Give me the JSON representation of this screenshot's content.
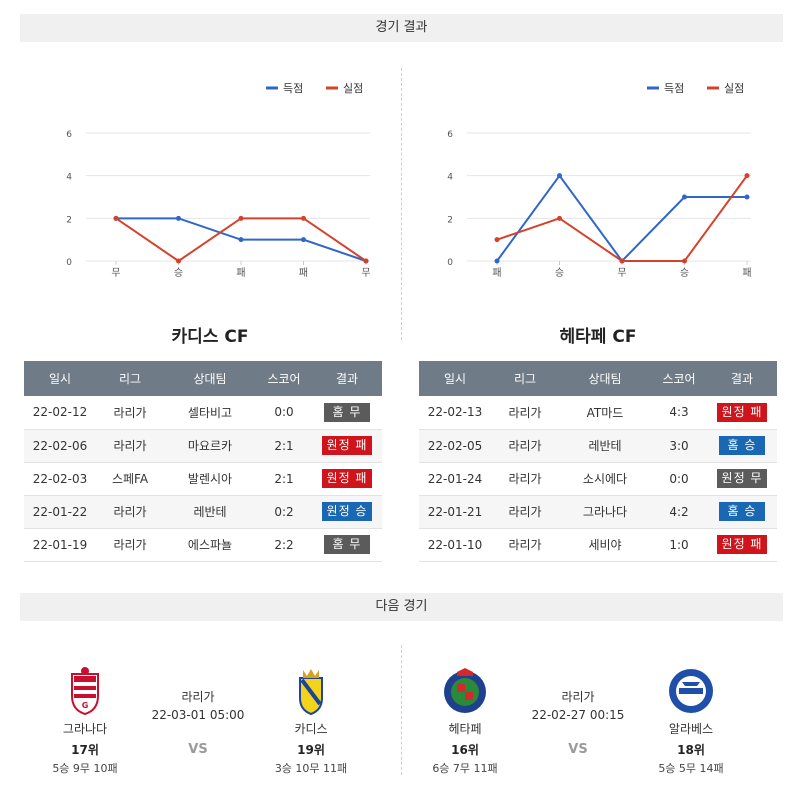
{
  "sections": {
    "results_title": "경기 결과",
    "next_title": "다음 경기"
  },
  "legend": {
    "scored": "득점",
    "conceded": "실점"
  },
  "colors": {
    "scored": "#2f66c9",
    "conceded": "#d6412b",
    "header": "#6f7b87",
    "draw": "#5b5b5b",
    "loss": "#d0141c",
    "win": "#1a68b3"
  },
  "chart_data": [
    {
      "type": "line",
      "categories": [
        "무",
        "승",
        "패",
        "패",
        "무"
      ],
      "series": [
        {
          "name": "득점",
          "values": [
            2,
            2,
            1,
            1,
            0
          ]
        },
        {
          "name": "실점",
          "values": [
            2,
            0,
            2,
            2,
            0
          ]
        }
      ],
      "yticks": [
        0,
        2,
        4,
        6
      ],
      "ylim": [
        0,
        6
      ],
      "grid": true,
      "legend_position": "top-right"
    },
    {
      "type": "line",
      "categories": [
        "패",
        "승",
        "무",
        "승",
        "패"
      ],
      "series": [
        {
          "name": "득점",
          "values": [
            0,
            4,
            0,
            3,
            3
          ]
        },
        {
          "name": "실점",
          "values": [
            1,
            2,
            0,
            0,
            4
          ]
        }
      ],
      "yticks": [
        0,
        2,
        4,
        6
      ],
      "ylim": [
        0,
        6
      ],
      "grid": true,
      "legend_position": "top-right"
    }
  ],
  "teams": [
    {
      "title": "카디스 CF",
      "headers": [
        "일시",
        "리그",
        "상대팀",
        "스코어",
        "결과"
      ],
      "rows": [
        {
          "date": "22-02-12",
          "league": "라리가",
          "opponent": "셀타비고",
          "score": "0:0",
          "result": "홈 무",
          "type": "draw"
        },
        {
          "date": "22-02-06",
          "league": "라리가",
          "opponent": "마요르카",
          "score": "2:1",
          "result": "원정 패",
          "type": "loss"
        },
        {
          "date": "22-02-03",
          "league": "스페FA",
          "opponent": "발렌시아",
          "score": "2:1",
          "result": "원정 패",
          "type": "loss"
        },
        {
          "date": "22-01-22",
          "league": "라리가",
          "opponent": "레반테",
          "score": "0:2",
          "result": "원정 승",
          "type": "win"
        },
        {
          "date": "22-01-19",
          "league": "라리가",
          "opponent": "에스파뇰",
          "score": "2:2",
          "result": "홈 무",
          "type": "draw"
        }
      ]
    },
    {
      "title": "헤타페 CF",
      "headers": [
        "일시",
        "리그",
        "상대팀",
        "스코어",
        "결과"
      ],
      "rows": [
        {
          "date": "22-02-13",
          "league": "라리가",
          "opponent": "AT마드",
          "score": "4:3",
          "result": "원정 패",
          "type": "loss"
        },
        {
          "date": "22-02-05",
          "league": "라리가",
          "opponent": "레반테",
          "score": "3:0",
          "result": "홈 승",
          "type": "win"
        },
        {
          "date": "22-01-24",
          "league": "라리가",
          "opponent": "소시에다",
          "score": "0:0",
          "result": "원정 무",
          "type": "draw"
        },
        {
          "date": "22-01-21",
          "league": "라리가",
          "opponent": "그라나다",
          "score": "4:2",
          "result": "홈 승",
          "type": "win"
        },
        {
          "date": "22-01-10",
          "league": "라리가",
          "opponent": "세비야",
          "score": "1:0",
          "result": "원정 패",
          "type": "loss"
        }
      ]
    }
  ],
  "matches": [
    {
      "home": {
        "name": "그라나다",
        "rank": "17위",
        "record": "5승 9무 10패",
        "crest": "granada-crest-icon"
      },
      "away": {
        "name": "카디스",
        "rank": "19위",
        "record": "3승 10무 11패",
        "crest": "cadiz-crest-icon"
      },
      "league": "라리가",
      "time": "22-03-01 05:00",
      "vs": "VS"
    },
    {
      "home": {
        "name": "헤타페",
        "rank": "16위",
        "record": "6승 7무 11패",
        "crest": "getafe-crest-icon"
      },
      "away": {
        "name": "알라베스",
        "rank": "18위",
        "record": "5승 5무 14패",
        "crest": "alaves-crest-icon"
      },
      "league": "라리가",
      "time": "22-02-27 00:15",
      "vs": "VS"
    }
  ]
}
